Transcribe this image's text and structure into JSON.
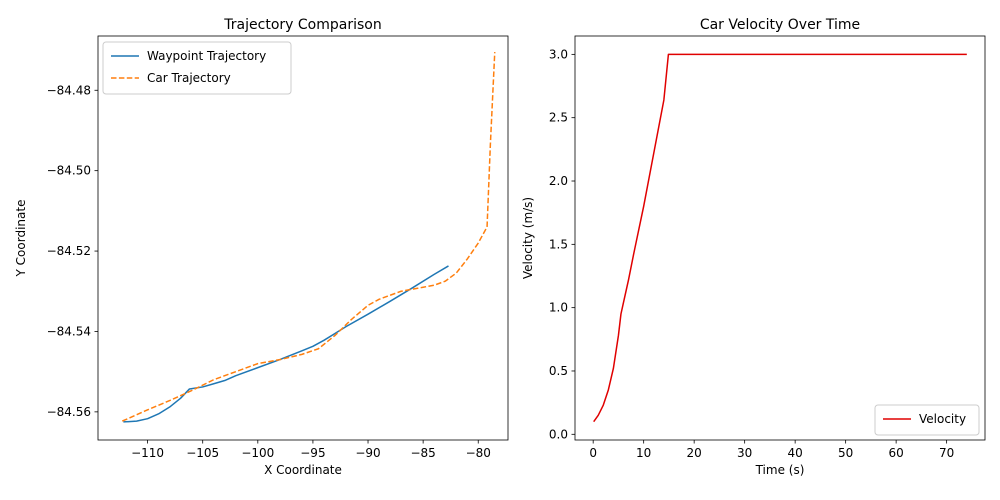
{
  "chart_data": [
    {
      "type": "line",
      "title": "Trajectory Comparison",
      "xlabel": "X Coordinate",
      "ylabel": "Y Coordinate",
      "xlim": [
        -114.5,
        -77.3
      ],
      "ylim": [
        -84.567,
        -84.4665
      ],
      "xticks": [
        -110,
        -105,
        -100,
        -95,
        -90,
        -85,
        -80
      ],
      "xtick_labels": [
        "−110",
        "−105",
        "−100",
        "−95",
        "−90",
        "−85",
        "−80"
      ],
      "yticks": [
        -84.56,
        -84.54,
        -84.52,
        -84.5,
        -84.48
      ],
      "ytick_labels": [
        "−84.56",
        "−84.54",
        "−84.52",
        "−84.50",
        "−84.48"
      ],
      "grid": false,
      "legend": "upper-left",
      "series": [
        {
          "name": "Waypoint Trajectory",
          "color": "#1f77b4",
          "style": "solid",
          "x": [
            -112.2,
            -111.0,
            -110.0,
            -109.0,
            -108.0,
            -107.0,
            -106.2,
            -105.0,
            -104.0,
            -103.0,
            -102.0,
            -100.0,
            -98.0,
            -96.0,
            -95.0,
            -94.0,
            -93.0,
            -92.0,
            -90.0,
            -88.0,
            -86.0,
            -84.0,
            -82.7
          ],
          "y": [
            -84.5625,
            -84.5623,
            -84.5617,
            -84.5605,
            -84.5588,
            -84.5566,
            -84.5543,
            -84.5538,
            -84.553,
            -84.5522,
            -84.551,
            -84.549,
            -84.547,
            -84.5448,
            -84.5437,
            -84.5422,
            -84.5405,
            -84.5388,
            -84.5357,
            -84.5325,
            -84.5292,
            -84.5258,
            -84.5237
          ]
        },
        {
          "name": "Car Trajectory",
          "color": "#ff7f0e",
          "style": "dashed",
          "x": [
            -112.3,
            -110.0,
            -108.0,
            -106.0,
            -104.0,
            -102.0,
            -100.0,
            -98.0,
            -96.0,
            -94.5,
            -93.0,
            -91.5,
            -90.0,
            -89.0,
            -88.0,
            -87.0,
            -85.0,
            -84.0,
            -83.0,
            -82.0,
            -81.0,
            -80.0,
            -79.2,
            -78.9,
            -78.5
          ],
          "y": [
            -84.5623,
            -84.5595,
            -84.5572,
            -84.5547,
            -84.552,
            -84.55,
            -84.548,
            -84.547,
            -84.5457,
            -84.5443,
            -84.541,
            -84.537,
            -84.5335,
            -84.532,
            -84.531,
            -84.53,
            -84.529,
            -84.5285,
            -84.5275,
            -84.5255,
            -84.522,
            -84.518,
            -84.514,
            -84.4935,
            -84.4705
          ]
        }
      ]
    },
    {
      "type": "line",
      "title": "Car Velocity Over Time",
      "xlabel": "Time (s)",
      "ylabel": "Velocity (m/s)",
      "xlim": [
        -3.6,
        77.6
      ],
      "ylim": [
        -0.045,
        3.145
      ],
      "xticks": [
        0,
        10,
        20,
        30,
        40,
        50,
        60,
        70
      ],
      "xtick_labels": [
        "0",
        "10",
        "20",
        "30",
        "40",
        "50",
        "60",
        "70"
      ],
      "yticks": [
        0.0,
        0.5,
        1.0,
        1.5,
        2.0,
        2.5,
        3.0
      ],
      "ytick_labels": [
        "0.0",
        "0.5",
        "1.0",
        "1.5",
        "2.0",
        "2.5",
        "3.0"
      ],
      "grid": false,
      "legend": "lower-right",
      "series": [
        {
          "name": "Velocity",
          "color": "#e00000",
          "style": "solid",
          "x": [
            0.1,
            1.0,
            2.0,
            3.0,
            4.0,
            5.0,
            5.5,
            6.0,
            7.0,
            8.0,
            10.0,
            12.0,
            14.0,
            14.9,
            15.2,
            74.0
          ],
          "y": [
            0.1,
            0.15,
            0.23,
            0.35,
            0.52,
            0.78,
            0.95,
            1.04,
            1.22,
            1.42,
            1.8,
            2.22,
            2.64,
            3.0,
            3.0,
            3.0
          ]
        }
      ]
    }
  ]
}
